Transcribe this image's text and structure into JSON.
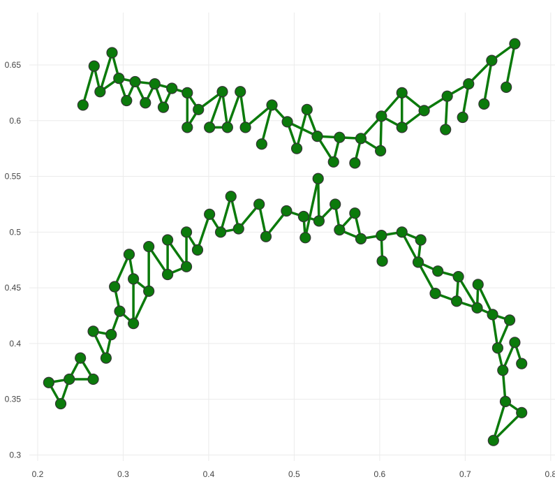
{
  "chart_data": {
    "type": "scatter",
    "title": "",
    "xlabel": "",
    "ylabel": "",
    "xlim": [
      0.187,
      0.805
    ],
    "ylim": [
      0.289,
      0.697
    ],
    "x_ticks": [
      "0.2",
      "0.3",
      "0.4",
      "0.5",
      "0.6",
      "0.7",
      "0.8"
    ],
    "y_ticks": [
      "0.3",
      "0.35",
      "0.4",
      "0.45",
      "0.5",
      "0.55",
      "0.6",
      "0.65"
    ],
    "grid": true,
    "legend": "none",
    "colors": {
      "node": "#0b7a0b",
      "node_outline": "#333333",
      "edge": "#0b7a0b",
      "grid": "#ebebeb"
    },
    "nodes": [
      [
        0.253,
        0.614
      ],
      [
        0.266,
        0.649
      ],
      [
        0.273,
        0.626
      ],
      [
        0.287,
        0.661
      ],
      [
        0.295,
        0.638
      ],
      [
        0.304,
        0.618
      ],
      [
        0.314,
        0.635
      ],
      [
        0.326,
        0.616
      ],
      [
        0.337,
        0.633
      ],
      [
        0.347,
        0.612
      ],
      [
        0.357,
        0.629
      ],
      [
        0.375,
        0.625
      ],
      [
        0.375,
        0.594
      ],
      [
        0.388,
        0.61
      ],
      [
        0.401,
        0.594
      ],
      [
        0.416,
        0.626
      ],
      [
        0.422,
        0.594
      ],
      [
        0.437,
        0.626
      ],
      [
        0.443,
        0.594
      ],
      [
        0.462,
        0.579
      ],
      [
        0.474,
        0.614
      ],
      [
        0.492,
        0.599
      ],
      [
        0.503,
        0.575
      ],
      [
        0.515,
        0.61
      ],
      [
        0.527,
        0.586
      ],
      [
        0.546,
        0.563
      ],
      [
        0.553,
        0.585
      ],
      [
        0.571,
        0.562
      ],
      [
        0.578,
        0.584
      ],
      [
        0.601,
        0.573
      ],
      [
        0.602,
        0.604
      ],
      [
        0.626,
        0.625
      ],
      [
        0.626,
        0.594
      ],
      [
        0.652,
        0.609
      ],
      [
        0.677,
        0.592
      ],
      [
        0.679,
        0.622
      ],
      [
        0.697,
        0.603
      ],
      [
        0.704,
        0.633
      ],
      [
        0.722,
        0.615
      ],
      [
        0.731,
        0.654
      ],
      [
        0.748,
        0.63
      ],
      [
        0.758,
        0.669
      ],
      [
        0.213,
        0.365
      ],
      [
        0.227,
        0.346
      ],
      [
        0.237,
        0.368
      ],
      [
        0.25,
        0.387
      ],
      [
        0.265,
        0.368
      ],
      [
        0.265,
        0.411
      ],
      [
        0.28,
        0.387
      ],
      [
        0.286,
        0.408
      ],
      [
        0.29,
        0.451
      ],
      [
        0.296,
        0.429
      ],
      [
        0.307,
        0.48
      ],
      [
        0.312,
        0.458
      ],
      [
        0.312,
        0.418
      ],
      [
        0.33,
        0.447
      ],
      [
        0.33,
        0.487
      ],
      [
        0.352,
        0.462
      ],
      [
        0.352,
        0.493
      ],
      [
        0.374,
        0.469
      ],
      [
        0.374,
        0.5
      ],
      [
        0.387,
        0.484
      ],
      [
        0.401,
        0.516
      ],
      [
        0.414,
        0.5
      ],
      [
        0.426,
        0.532
      ],
      [
        0.435,
        0.503
      ],
      [
        0.459,
        0.525
      ],
      [
        0.467,
        0.496
      ],
      [
        0.491,
        0.519
      ],
      [
        0.511,
        0.514
      ],
      [
        0.513,
        0.495
      ],
      [
        0.528,
        0.548
      ],
      [
        0.529,
        0.51
      ],
      [
        0.548,
        0.525
      ],
      [
        0.553,
        0.502
      ],
      [
        0.571,
        0.517
      ],
      [
        0.578,
        0.494
      ],
      [
        0.602,
        0.497
      ],
      [
        0.603,
        0.474
      ],
      [
        0.626,
        0.5
      ],
      [
        0.645,
        0.473
      ],
      [
        0.648,
        0.493
      ],
      [
        0.665,
        0.445
      ],
      [
        0.668,
        0.465
      ],
      [
        0.69,
        0.438
      ],
      [
        0.692,
        0.46
      ],
      [
        0.714,
        0.432
      ],
      [
        0.715,
        0.453
      ],
      [
        0.732,
        0.426
      ],
      [
        0.733,
        0.313
      ],
      [
        0.738,
        0.396
      ],
      [
        0.744,
        0.376
      ],
      [
        0.747,
        0.348
      ],
      [
        0.752,
        0.421
      ],
      [
        0.758,
        0.401
      ],
      [
        0.766,
        0.338
      ],
      [
        0.766,
        0.382
      ]
    ],
    "edges": [
      [
        0,
        1
      ],
      [
        1,
        2
      ],
      [
        2,
        3
      ],
      [
        3,
        4
      ],
      [
        2,
        4
      ],
      [
        4,
        6
      ],
      [
        5,
        6
      ],
      [
        4,
        5
      ],
      [
        6,
        7
      ],
      [
        7,
        8
      ],
      [
        6,
        8
      ],
      [
        8,
        9
      ],
      [
        9,
        10
      ],
      [
        8,
        10
      ],
      [
        10,
        11
      ],
      [
        11,
        12
      ],
      [
        12,
        13
      ],
      [
        11,
        13
      ],
      [
        13,
        15
      ],
      [
        14,
        15
      ],
      [
        14,
        16
      ],
      [
        15,
        16
      ],
      [
        16,
        17
      ],
      [
        17,
        18
      ],
      [
        18,
        20
      ],
      [
        19,
        20
      ],
      [
        20,
        21
      ],
      [
        21,
        22
      ],
      [
        22,
        23
      ],
      [
        23,
        24
      ],
      [
        21,
        24
      ],
      [
        24,
        26
      ],
      [
        25,
        26
      ],
      [
        24,
        25
      ],
      [
        26,
        28
      ],
      [
        27,
        28
      ],
      [
        28,
        29
      ],
      [
        29,
        30
      ],
      [
        28,
        30
      ],
      [
        30,
        32
      ],
      [
        30,
        31
      ],
      [
        31,
        32
      ],
      [
        31,
        33
      ],
      [
        32,
        33
      ],
      [
        33,
        35
      ],
      [
        34,
        35
      ],
      [
        35,
        37
      ],
      [
        36,
        37
      ],
      [
        37,
        39
      ],
      [
        38,
        39
      ],
      [
        39,
        41
      ],
      [
        40,
        41
      ],
      [
        42,
        43
      ],
      [
        43,
        44
      ],
      [
        42,
        44
      ],
      [
        44,
        45
      ],
      [
        45,
        46
      ],
      [
        44,
        46
      ],
      [
        47,
        48
      ],
      [
        47,
        49
      ],
      [
        48,
        49
      ],
      [
        49,
        51
      ],
      [
        50,
        51
      ],
      [
        50,
        52
      ],
      [
        51,
        54
      ],
      [
        53,
        54
      ],
      [
        52,
        53
      ],
      [
        53,
        55
      ],
      [
        54,
        55
      ],
      [
        55,
        56
      ],
      [
        56,
        57
      ],
      [
        57,
        58
      ],
      [
        57,
        59
      ],
      [
        58,
        59
      ],
      [
        59,
        60
      ],
      [
        60,
        61
      ],
      [
        61,
        62
      ],
      [
        62,
        63
      ],
      [
        63,
        64
      ],
      [
        64,
        65
      ],
      [
        63,
        65
      ],
      [
        65,
        66
      ],
      [
        66,
        67
      ],
      [
        67,
        68
      ],
      [
        68,
        69
      ],
      [
        69,
        70
      ],
      [
        70,
        71
      ],
      [
        71,
        72
      ],
      [
        69,
        72
      ],
      [
        72,
        73
      ],
      [
        73,
        74
      ],
      [
        74,
        75
      ],
      [
        75,
        76
      ],
      [
        74,
        76
      ],
      [
        76,
        77
      ],
      [
        77,
        78
      ],
      [
        77,
        79
      ],
      [
        79,
        80
      ],
      [
        80,
        81
      ],
      [
        79,
        81
      ],
      [
        80,
        82
      ],
      [
        80,
        83
      ],
      [
        82,
        84
      ],
      [
        83,
        85
      ],
      [
        84,
        85
      ],
      [
        85,
        86
      ],
      [
        84,
        86
      ],
      [
        86,
        87
      ],
      [
        87,
        88
      ],
      [
        86,
        88
      ],
      [
        88,
        93
      ],
      [
        90,
        93
      ],
      [
        88,
        90
      ],
      [
        89,
        92
      ],
      [
        89,
        95
      ],
      [
        90,
        91
      ],
      [
        92,
        95
      ],
      [
        91,
        94
      ],
      [
        94,
        96
      ],
      [
        91,
        92
      ]
    ]
  }
}
